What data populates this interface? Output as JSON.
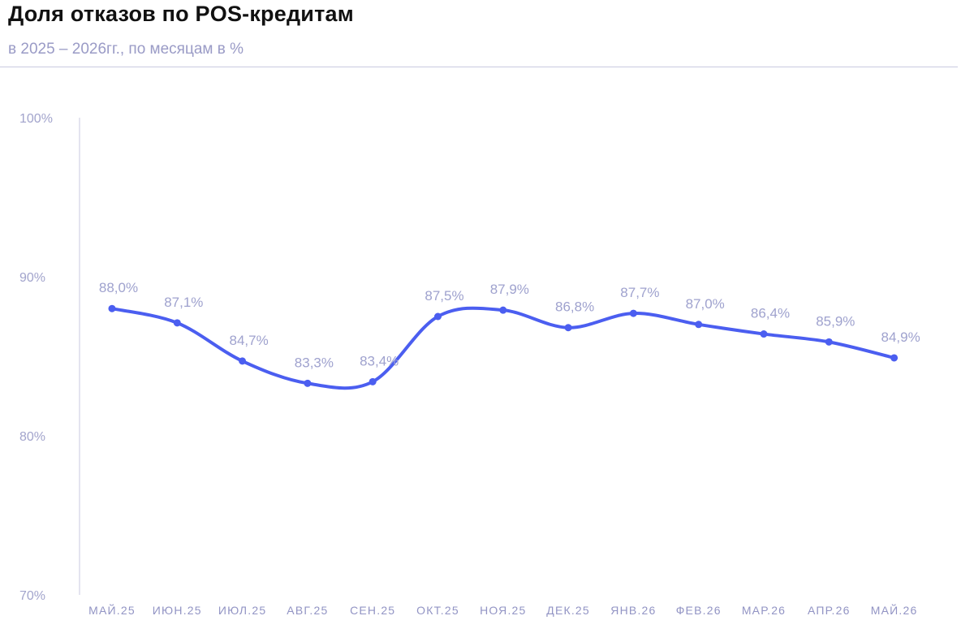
{
  "header": {
    "title": "Доля отказов по POS-кредитам",
    "subtitle": "в 2025 – 2026гг., по месяцам в %"
  },
  "colors": {
    "line": "#4b5ef0",
    "axis": "#c9cae0",
    "label": "#9fa2ce"
  },
  "chart_data": {
    "type": "line",
    "categories": [
      "МАЙ.25",
      "ИЮН.25",
      "ИЮЛ.25",
      "АВГ.25",
      "СЕН.25",
      "ОКТ.25",
      "НОЯ.25",
      "ДЕК.25",
      "ЯНВ.26",
      "ФЕВ.26",
      "МАР.26",
      "АПР.26",
      "МАЙ.26"
    ],
    "series": [
      {
        "values": [
          88.0,
          87.1,
          84.7,
          83.3,
          83.4,
          87.5,
          87.9,
          86.8,
          87.7,
          87.0,
          86.4,
          85.9,
          84.9
        ],
        "labels": [
          "88,0%",
          "87,1%",
          "84,7%",
          "83,3%",
          "83,4%",
          "87,5%",
          "87,9%",
          "86,8%",
          "87,7%",
          "87,0%",
          "86,4%",
          "85,9%",
          "84,9%"
        ]
      }
    ],
    "ylim": [
      70,
      100
    ],
    "yticks": [
      70,
      80,
      90,
      100
    ],
    "ytick_labels": [
      "70%",
      "80%",
      "90%",
      "100%"
    ],
    "grid": false,
    "legend": "none",
    "smooth": true
  }
}
